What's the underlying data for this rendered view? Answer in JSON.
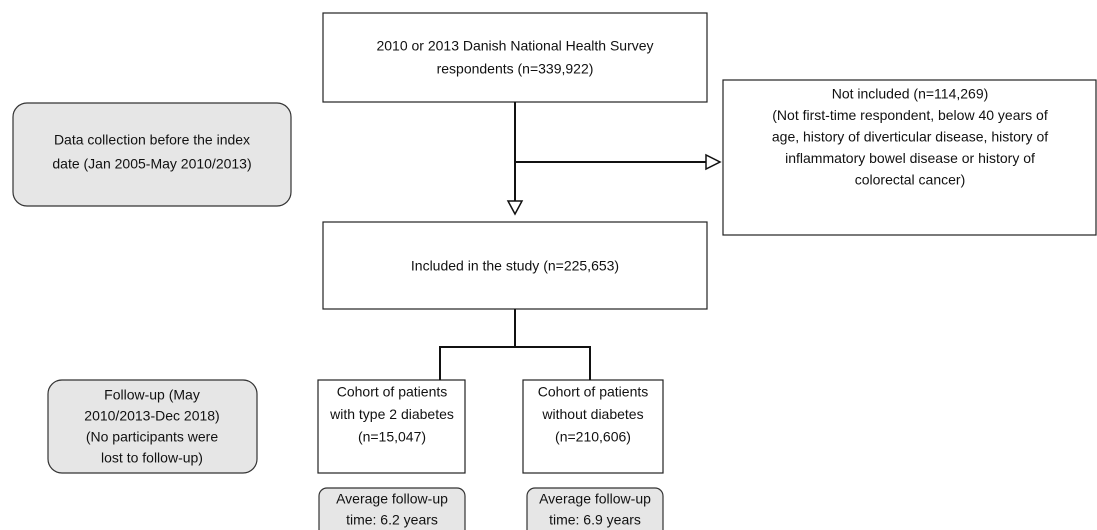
{
  "nodes": [
    {
      "lines": [
        "2010 or 2013 Danish National Health Survey",
        "respondents (n=339,922)"
      ]
    },
    {
      "lines": [
        "Data collection before the index",
        "date (Jan 2005-May 2010/2013)"
      ]
    },
    {
      "lines": [
        "Not included (n=114,269)",
        "(Not first-time respondent, below 40 years of",
        "age, history of diverticular disease, history of",
        "inflammatory bowel disease or history of",
        "colorectal cancer)"
      ]
    },
    {
      "lines": [
        "Included in the study (n=225,653)"
      ]
    },
    {
      "lines": [
        "Follow-up (May",
        "2010/2013-Dec 2018)",
        "(No participants were",
        "lost to follow-up)"
      ]
    },
    {
      "lines": [
        "Cohort of patients",
        "with type 2 diabetes",
        "(n=15,047)"
      ]
    },
    {
      "lines": [
        "Cohort of patients",
        "without diabetes",
        "(n=210,606)"
      ]
    },
    {
      "lines": [
        "Average follow-up",
        "time: 6.2 years"
      ]
    },
    {
      "lines": [
        "Average follow-up",
        "time: 6.9 years"
      ]
    }
  ]
}
